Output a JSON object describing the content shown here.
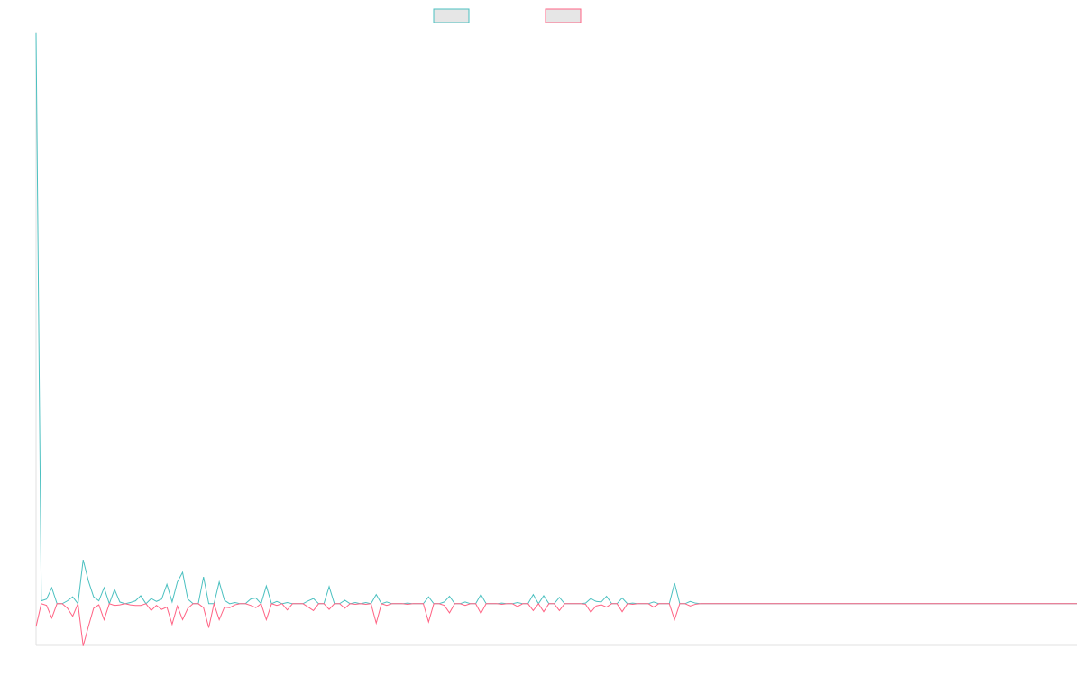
{
  "chart_data": {
    "type": "line",
    "series": [
      {
        "color": "#4bc0c0",
        "values": [
          100,
          0.5,
          0.8,
          2.8,
          0,
          0,
          0.5,
          1.2,
          0,
          7.7,
          4,
          1.2,
          0.5,
          2.8,
          0,
          2.5,
          0.3,
          0,
          0.2,
          0.5,
          1.4,
          0,
          0.9,
          0.4,
          0.8,
          3.4,
          0.3,
          3.8,
          5.5,
          0.8,
          0,
          0,
          4.7,
          0,
          0,
          3.8,
          0.6,
          0,
          0.2,
          0,
          0,
          0.8,
          1.0,
          0,
          3.1,
          0,
          0.4,
          0,
          0.2,
          0,
          0,
          0,
          0.5,
          0.9,
          0,
          0,
          3.0,
          0,
          0,
          0.6,
          0,
          0.2,
          0,
          0.2,
          0,
          1.6,
          0,
          0.3,
          0,
          0,
          0,
          0.1,
          0,
          0,
          0,
          1.2,
          0,
          0,
          0.3,
          1.3,
          0,
          0,
          0.3,
          0,
          0,
          1.6,
          0,
          0,
          0,
          0.1,
          0,
          0,
          0.2,
          0,
          0,
          1.6,
          0,
          1.4,
          0,
          0,
          1.1,
          0,
          0,
          0,
          0,
          0.1,
          0.9,
          0.4,
          0.3,
          1.3,
          0,
          0,
          1.0,
          0,
          0.1,
          0,
          0,
          0,
          0.3,
          0,
          0,
          0,
          3.6,
          0,
          0,
          0.4,
          0.1,
          0,
          0,
          0,
          0,
          0,
          0,
          0,
          0,
          0,
          0,
          0,
          0,
          0,
          0,
          0,
          0,
          0,
          0,
          0,
          0,
          0,
          0,
          0,
          0,
          0,
          0,
          0,
          0,
          0,
          0,
          0,
          0,
          0,
          0,
          0,
          0,
          0,
          0,
          0,
          0,
          0,
          0,
          0,
          0,
          0,
          0,
          0,
          0,
          0,
          0,
          0,
          0,
          0,
          0,
          0,
          0,
          0,
          0,
          0,
          0,
          0,
          0,
          0,
          0,
          0,
          0,
          0,
          0,
          0,
          0,
          0,
          0,
          0
        ]
      },
      {
        "color": "#ff6384",
        "values": [
          -4,
          0,
          -0.3,
          -2.5,
          0,
          0,
          -0.8,
          -2.2,
          0,
          -7.4,
          -4,
          -0.8,
          -0.2,
          -2.8,
          0,
          -0.3,
          -0.2,
          0,
          -0.2,
          -0.3,
          -0.3,
          0,
          -1.2,
          -0.3,
          -1.0,
          -0.6,
          -3.6,
          -0.4,
          -2.8,
          -0.8,
          0,
          0,
          -0.7,
          -4.2,
          0,
          -2.8,
          -0.6,
          -0.7,
          -0.2,
          0,
          0,
          -0.3,
          -0.7,
          0,
          -2.8,
          0,
          -0.3,
          0,
          -1.1,
          0,
          0,
          0,
          -0.6,
          -1.2,
          0,
          0,
          -1.0,
          0,
          0,
          -0.8,
          0,
          -0.1,
          0,
          -0.1,
          0,
          -3.4,
          0,
          -0.3,
          0,
          0,
          0,
          -0.1,
          0,
          0,
          0,
          -3.2,
          0,
          0,
          -0.3,
          -1.6,
          0,
          0,
          -0.3,
          0,
          0,
          -1.7,
          0,
          0,
          0,
          -0.1,
          0,
          0,
          -0.5,
          0,
          0,
          -1.2,
          0,
          -1.4,
          0,
          0,
          -1.2,
          0,
          0,
          0,
          0,
          -0.1,
          -1.5,
          -0.4,
          -0.2,
          -0.6,
          0,
          0,
          -1.4,
          0,
          -0.1,
          0,
          0,
          0,
          -0.6,
          0,
          0,
          0,
          -2.8,
          0,
          0,
          -0.4,
          -0.1,
          0,
          0,
          0,
          0,
          0,
          0,
          0,
          0,
          0,
          0,
          0,
          0,
          0,
          0,
          0,
          0,
          0,
          0,
          0,
          0,
          0,
          0,
          0,
          0,
          0,
          0,
          0,
          0,
          0,
          0,
          0,
          0,
          0,
          0,
          0,
          0,
          0,
          0,
          0,
          0,
          0,
          0,
          0,
          0,
          0,
          0,
          0,
          0,
          0,
          0,
          0,
          0,
          0,
          0,
          0,
          0,
          0,
          0,
          0,
          0,
          0,
          0,
          0,
          0,
          0,
          0,
          0,
          0,
          0,
          0,
          0,
          0,
          0
        ]
      }
    ],
    "ylim": [
      -7.3,
      100
    ]
  }
}
